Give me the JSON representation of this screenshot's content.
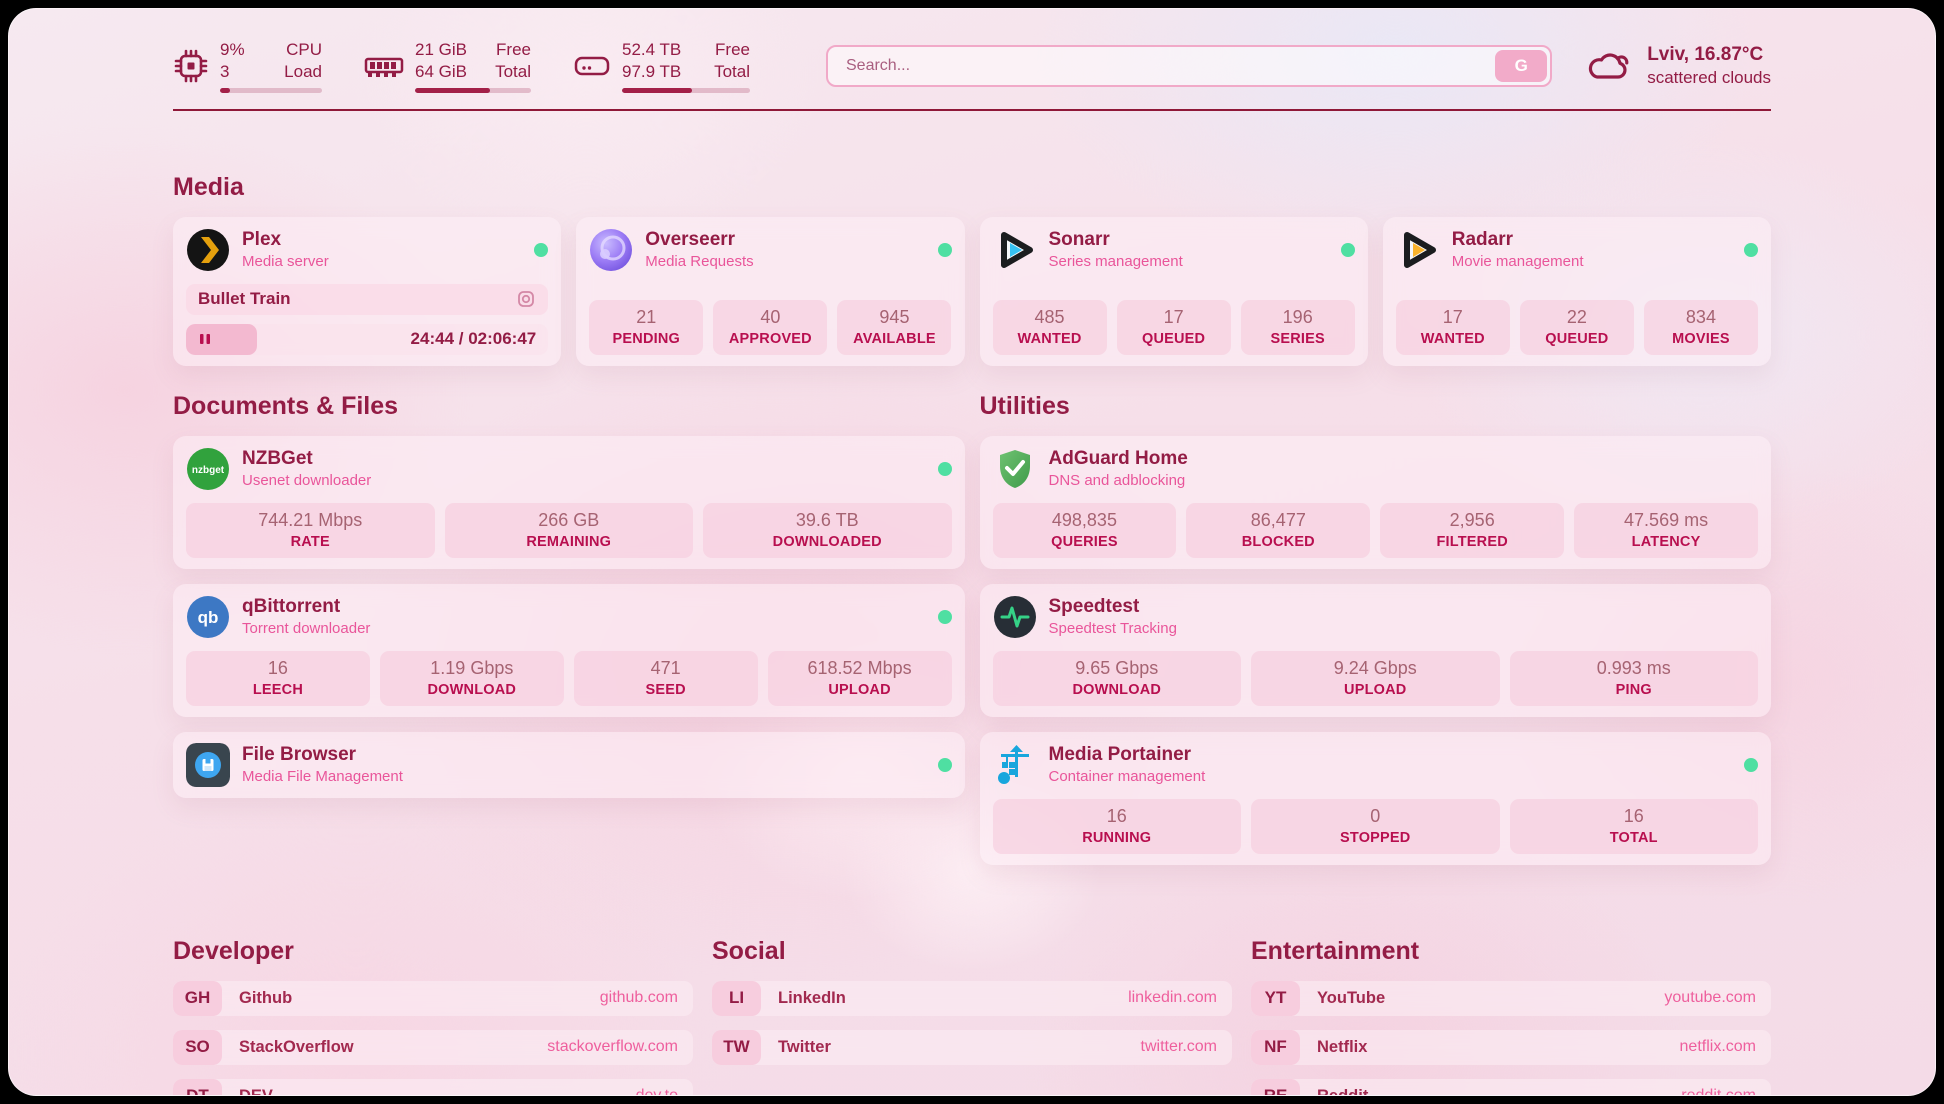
{
  "topbar": {
    "cpu": {
      "value_top": "9%",
      "value_bottom": "3",
      "label_top": "CPU",
      "label_bottom": "Load",
      "progress_pct": 10
    },
    "ram": {
      "value_top": "21 GiB",
      "value_bottom": "64 GiB",
      "label_top": "Free",
      "label_bottom": "Total",
      "progress_pct": 65
    },
    "disk": {
      "value_top": "52.4 TB",
      "value_bottom": "97.9 TB",
      "label_top": "Free",
      "label_bottom": "Total",
      "progress_pct": 55
    },
    "search": {
      "placeholder": "Search...",
      "button_label": "G"
    },
    "weather": {
      "location": "Lviv, 16.87°C",
      "condition": "scattered clouds"
    }
  },
  "sections": {
    "media": {
      "title": "Media",
      "plex": {
        "title": "Plex",
        "subtitle": "Media server",
        "status": "online",
        "now_playing": "Bullet Train",
        "time": "24:44 / 02:06:47",
        "progress_pct": 19.5
      },
      "overseerr": {
        "title": "Overseerr",
        "subtitle": "Media Requests",
        "status": "online",
        "stats": [
          {
            "value": "21",
            "label": "PENDING"
          },
          {
            "value": "40",
            "label": "APPROVED"
          },
          {
            "value": "945",
            "label": "AVAILABLE"
          }
        ]
      },
      "sonarr": {
        "title": "Sonarr",
        "subtitle": "Series management",
        "status": "online",
        "stats": [
          {
            "value": "485",
            "label": "WANTED"
          },
          {
            "value": "17",
            "label": "QUEUED"
          },
          {
            "value": "196",
            "label": "SERIES"
          }
        ]
      },
      "radarr": {
        "title": "Radarr",
        "subtitle": "Movie management",
        "status": "online",
        "stats": [
          {
            "value": "17",
            "label": "WANTED"
          },
          {
            "value": "22",
            "label": "QUEUED"
          },
          {
            "value": "834",
            "label": "MOVIES"
          }
        ]
      }
    },
    "documents": {
      "title": "Documents & Files",
      "nzbget": {
        "title": "NZBGet",
        "subtitle": "Usenet downloader",
        "status": "online",
        "stats": [
          {
            "value": "744.21 Mbps",
            "label": "RATE"
          },
          {
            "value": "266 GB",
            "label": "REMAINING"
          },
          {
            "value": "39.6 TB",
            "label": "DOWNLOADED"
          }
        ]
      },
      "qbittorrent": {
        "title": "qBittorrent",
        "subtitle": "Torrent downloader",
        "status": "online",
        "stats": [
          {
            "value": "16",
            "label": "LEECH"
          },
          {
            "value": "1.19 Gbps",
            "label": "DOWNLOAD"
          },
          {
            "value": "471",
            "label": "SEED"
          },
          {
            "value": "618.52 Mbps",
            "label": "UPLOAD"
          }
        ]
      },
      "filebrowser": {
        "title": "File Browser",
        "subtitle": "Media File Management",
        "status": "online"
      }
    },
    "utilities": {
      "title": "Utilities",
      "adguard": {
        "title": "AdGuard Home",
        "subtitle": "DNS and adblocking",
        "stats": [
          {
            "value": "498,835",
            "label": "QUERIES"
          },
          {
            "value": "86,477",
            "label": "BLOCKED"
          },
          {
            "value": "2,956",
            "label": "FILTERED"
          },
          {
            "value": "47.569 ms",
            "label": "LATENCY"
          }
        ]
      },
      "speedtest": {
        "title": "Speedtest",
        "subtitle": "Speedtest Tracking",
        "stats": [
          {
            "value": "9.65 Gbps",
            "label": "DOWNLOAD"
          },
          {
            "value": "9.24 Gbps",
            "label": "UPLOAD"
          },
          {
            "value": "0.993 ms",
            "label": "PING"
          }
        ]
      },
      "portainer": {
        "title": "Media Portainer",
        "subtitle": "Container management",
        "status": "online",
        "stats": [
          {
            "value": "16",
            "label": "RUNNING"
          },
          {
            "value": "0",
            "label": "STOPPED"
          },
          {
            "value": "16",
            "label": "TOTAL"
          }
        ]
      }
    },
    "developer": {
      "title": "Developer",
      "links": [
        {
          "abbr": "GH",
          "name": "Github",
          "url": "github.com"
        },
        {
          "abbr": "SO",
          "name": "StackOverflow",
          "url": "stackoverflow.com"
        },
        {
          "abbr": "DT",
          "name": "DEV",
          "url": "dev.to"
        }
      ]
    },
    "social": {
      "title": "Social",
      "links": [
        {
          "abbr": "LI",
          "name": "LinkedIn",
          "url": "linkedin.com"
        },
        {
          "abbr": "TW",
          "name": "Twitter",
          "url": "twitter.com"
        }
      ]
    },
    "entertainment": {
      "title": "Entertainment",
      "links": [
        {
          "abbr": "YT",
          "name": "YouTube",
          "url": "youtube.com"
        },
        {
          "abbr": "NF",
          "name": "Netflix",
          "url": "netflix.com"
        },
        {
          "abbr": "RE",
          "name": "Reddit",
          "url": "reddit.com"
        }
      ]
    }
  },
  "colors": {
    "accent": "#931c45",
    "pink": "#e9559a",
    "status_green": "#4fdfa2",
    "divider": "#8f1838"
  }
}
